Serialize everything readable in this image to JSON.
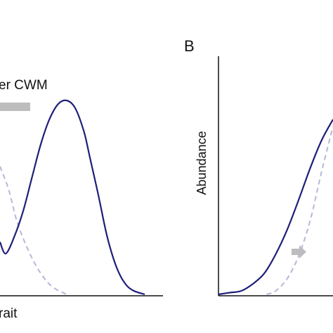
{
  "chart_data": [
    {
      "type": "line",
      "panel_label": "",
      "annotation": "er CWM",
      "xlabel": "rait",
      "ylabel": "",
      "grid": false,
      "series": [
        {
          "style": "solid",
          "color": "#1f1f7a",
          "x": [
            0,
            0.04,
            0.1,
            0.16,
            0.22,
            0.28,
            0.34,
            0.4,
            0.46,
            0.52,
            0.58,
            0.62,
            0.68,
            0.74,
            0.8,
            0.86,
            0.92,
            1.0
          ],
          "y": [
            0.27,
            0.21,
            0.3,
            0.43,
            0.6,
            0.77,
            0.9,
            0.98,
            1.0,
            0.96,
            0.84,
            0.71,
            0.51,
            0.3,
            0.15,
            0.06,
            0.02,
            0.0
          ]
        },
        {
          "style": "dashed",
          "color": "#b7b7d9",
          "x": [
            0,
            0.06,
            0.12,
            0.2,
            0.28,
            0.36,
            0.46
          ],
          "y": [
            0.66,
            0.54,
            0.37,
            0.22,
            0.11,
            0.04,
            0.0
          ]
        }
      ],
      "shift_arrow": {
        "color": "#bdbdbd"
      }
    },
    {
      "type": "line",
      "panel_label": "B",
      "xlabel": "",
      "ylabel": "Abundance",
      "grid": false,
      "series": [
        {
          "style": "solid",
          "color": "#1f1f7a",
          "x": [
            0,
            0.1,
            0.2,
            0.3,
            0.4,
            0.5,
            0.6,
            0.7,
            0.8,
            0.9,
            1.0
          ],
          "y": [
            0.0,
            0.01,
            0.02,
            0.06,
            0.12,
            0.23,
            0.37,
            0.54,
            0.72,
            0.88,
            1.0
          ]
        },
        {
          "style": "dashed",
          "color": "#b7b7d9",
          "x": [
            0.42,
            0.5,
            0.6,
            0.7,
            0.8,
            0.9,
            1.0
          ],
          "y": [
            0.0,
            0.02,
            0.09,
            0.22,
            0.42,
            0.7,
            0.96
          ]
        }
      ],
      "shift_arrow": {
        "color": "#bdbdbd"
      }
    }
  ]
}
